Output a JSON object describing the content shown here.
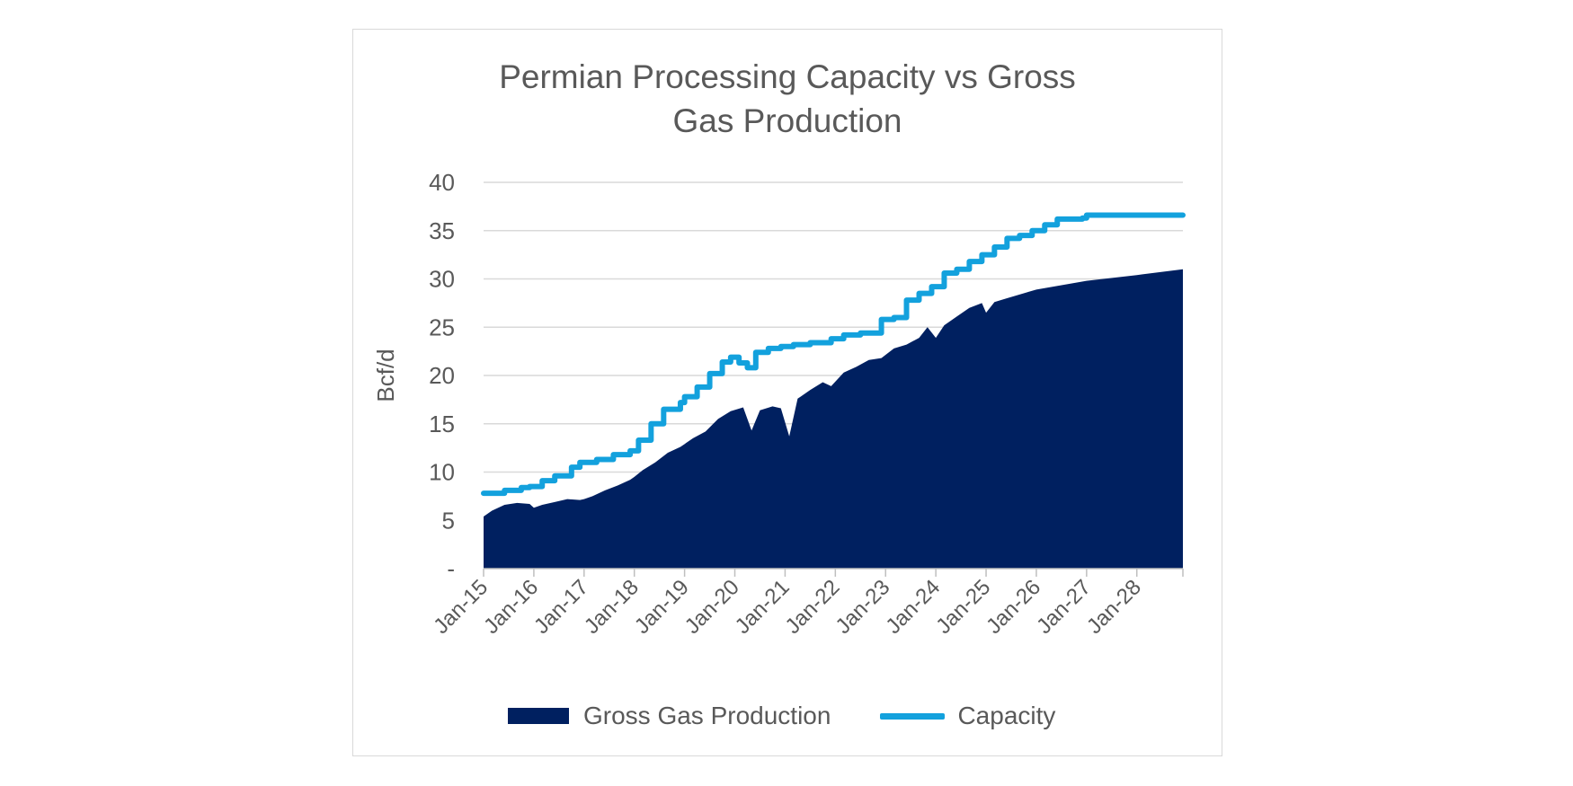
{
  "chart_data": {
    "type": "area",
    "title_lines": [
      "Permian Processing Capacity vs Gross",
      "Gas Production"
    ],
    "ylabel": "Bcf/d",
    "ylim": [
      0,
      40
    ],
    "y_ticks": [
      "-",
      "5",
      "10",
      "15",
      "20",
      "25",
      "30",
      "35",
      "40"
    ],
    "x_tick_labels": [
      "Jan-15",
      "Jan-16",
      "Jan-17",
      "Jan-18",
      "Jan-19",
      "Jan-20",
      "Jan-21",
      "Jan-22",
      "Jan-23",
      "Jan-24",
      "Jan-25",
      "Jan-26",
      "Jan-27",
      "Jan-28"
    ],
    "x_range": [
      "Jan-15",
      "Dec-28"
    ],
    "grid": "horizontal",
    "legend_position": "bottom",
    "series": [
      {
        "name": "Gross Gas Production",
        "kind": "area",
        "color": "#002060",
        "points": [
          [
            "Jan-15",
            5.4
          ],
          [
            "Mar-15",
            6.0
          ],
          [
            "Jun-15",
            6.6
          ],
          [
            "Sep-15",
            6.8
          ],
          [
            "Dec-15",
            6.7
          ],
          [
            "Jan-16",
            6.3
          ],
          [
            "Mar-16",
            6.6
          ],
          [
            "Jun-16",
            6.9
          ],
          [
            "Sep-16",
            7.2
          ],
          [
            "Dec-16",
            7.1
          ],
          [
            "Jan-17",
            7.2
          ],
          [
            "Mar-17",
            7.5
          ],
          [
            "Jun-17",
            8.1
          ],
          [
            "Sep-17",
            8.6
          ],
          [
            "Dec-17",
            9.2
          ],
          [
            "Jan-18",
            9.5
          ],
          [
            "Mar-18",
            10.2
          ],
          [
            "Jun-18",
            11.0
          ],
          [
            "Sep-18",
            12.0
          ],
          [
            "Dec-18",
            12.6
          ],
          [
            "Jan-19",
            12.9
          ],
          [
            "Mar-19",
            13.5
          ],
          [
            "Jun-19",
            14.2
          ],
          [
            "Sep-19",
            15.5
          ],
          [
            "Dec-19",
            16.3
          ],
          [
            "Mar-20",
            16.7
          ],
          [
            "May-20",
            14.3
          ],
          [
            "Jul-20",
            16.4
          ],
          [
            "Oct-20",
            16.8
          ],
          [
            "Dec-20",
            16.6
          ],
          [
            "Feb-21",
            13.7
          ],
          [
            "Apr-21",
            17.6
          ],
          [
            "Jul-21",
            18.5
          ],
          [
            "Oct-21",
            19.3
          ],
          [
            "Dec-21",
            18.9
          ],
          [
            "Mar-22",
            20.3
          ],
          [
            "Jun-22",
            20.9
          ],
          [
            "Sep-22",
            21.6
          ],
          [
            "Dec-22",
            21.8
          ],
          [
            "Mar-23",
            22.8
          ],
          [
            "Jun-23",
            23.2
          ],
          [
            "Sep-23",
            23.9
          ],
          [
            "Nov-23",
            25.0
          ],
          [
            "Jan-24",
            23.9
          ],
          [
            "Mar-24",
            25.2
          ],
          [
            "Jun-24",
            26.1
          ],
          [
            "Sep-24",
            27.0
          ],
          [
            "Dec-24",
            27.5
          ],
          [
            "Jan-25",
            26.5
          ],
          [
            "Mar-25",
            27.6
          ],
          [
            "Jun-25",
            28.0
          ],
          [
            "Jan-26",
            28.9
          ],
          [
            "Jan-27",
            29.8
          ],
          [
            "Jan-28",
            30.4
          ],
          [
            "Dec-28",
            31.0
          ]
        ]
      },
      {
        "name": "Capacity",
        "kind": "line",
        "color": "#13a1dd",
        "points": [
          [
            "Jan-15",
            7.8
          ],
          [
            "Jun-15",
            8.1
          ],
          [
            "Oct-15",
            8.4
          ],
          [
            "Dec-15",
            8.5
          ],
          [
            "Mar-16",
            9.1
          ],
          [
            "Jun-16",
            9.6
          ],
          [
            "Oct-16",
            10.5
          ],
          [
            "Dec-16",
            11.0
          ],
          [
            "Apr-17",
            11.3
          ],
          [
            "Aug-17",
            11.8
          ],
          [
            "Dec-17",
            12.2
          ],
          [
            "Feb-18",
            13.3
          ],
          [
            "May-18",
            15.0
          ],
          [
            "Aug-18",
            16.5
          ],
          [
            "Dec-18",
            17.2
          ],
          [
            "Jan-19",
            17.8
          ],
          [
            "Apr-19",
            18.8
          ],
          [
            "Jul-19",
            20.2
          ],
          [
            "Oct-19",
            21.4
          ],
          [
            "Dec-19",
            21.9
          ],
          [
            "Feb-20",
            21.3
          ],
          [
            "Apr-20",
            20.8
          ],
          [
            "Jun-20",
            22.4
          ],
          [
            "Sep-20",
            22.8
          ],
          [
            "Dec-20",
            23.0
          ],
          [
            "Mar-21",
            23.2
          ],
          [
            "Jul-21",
            23.4
          ],
          [
            "Dec-21",
            23.8
          ],
          [
            "Mar-22",
            24.2
          ],
          [
            "Jul-22",
            24.4
          ],
          [
            "Dec-22",
            25.8
          ],
          [
            "Mar-23",
            26.0
          ],
          [
            "Jun-23",
            27.8
          ],
          [
            "Sep-23",
            28.5
          ],
          [
            "Dec-23",
            29.2
          ],
          [
            "Mar-24",
            30.6
          ],
          [
            "Jun-24",
            31.0
          ],
          [
            "Sep-24",
            31.8
          ],
          [
            "Dec-24",
            32.5
          ],
          [
            "Mar-25",
            33.3
          ],
          [
            "Jun-25",
            34.2
          ],
          [
            "Sep-25",
            34.5
          ],
          [
            "Dec-25",
            35.0
          ],
          [
            "Mar-26",
            35.6
          ],
          [
            "Jun-26",
            36.2
          ],
          [
            "Dec-26",
            36.3
          ],
          [
            "Jan-27",
            36.6
          ],
          [
            "Dec-28",
            36.6
          ]
        ]
      }
    ]
  }
}
